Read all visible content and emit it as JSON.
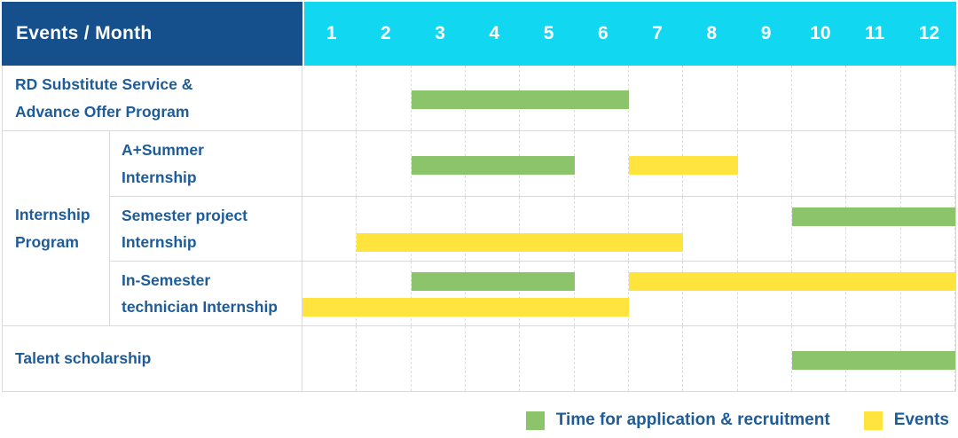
{
  "colors": {
    "header_blue": "#15508c",
    "header_cyan": "#12d7f0",
    "text_blue": "#1e5c99",
    "bar_green": "#8bc46a",
    "bar_yellow": "#ffe43d",
    "grid_line": "#dcdcdc",
    "row_border": "#d9d9d9"
  },
  "header": {
    "title": "Events / Month",
    "months": [
      "1",
      "2",
      "3",
      "4",
      "5",
      "6",
      "7",
      "8",
      "9",
      "10",
      "11",
      "12"
    ]
  },
  "group": {
    "label": "Internship\nProgram"
  },
  "ui": {
    "rows": [
      {
        "label": "RD Substitute Service &\nAdvance Offer Program",
        "bars": [
          {
            "color": "green",
            "start": 3,
            "end": 6,
            "lane": "center"
          }
        ]
      },
      {
        "label": "A+Summer\nInternship",
        "bars": [
          {
            "color": "green",
            "start": 3,
            "end": 5,
            "lane": "center"
          },
          {
            "color": "yellow",
            "start": 7,
            "end": 8,
            "lane": "center"
          }
        ]
      },
      {
        "label": "Semester project\nInternship",
        "bars": [
          {
            "color": "green",
            "start": 10,
            "end": 12,
            "lane": "top"
          },
          {
            "color": "yellow",
            "start": 2,
            "end": 7,
            "lane": "bottom"
          }
        ]
      },
      {
        "label": "In-Semester\ntechnician Internship",
        "bars": [
          {
            "color": "green",
            "start": 3,
            "end": 5,
            "lane": "top"
          },
          {
            "color": "yellow",
            "start": 7,
            "end": 12,
            "lane": "top"
          },
          {
            "color": "yellow",
            "start": 1,
            "end": 6,
            "lane": "bottom"
          }
        ]
      },
      {
        "label": "Talent scholarship",
        "bars": [
          {
            "color": "green",
            "start": 10,
            "end": 12,
            "lane": "center"
          }
        ]
      }
    ]
  },
  "legend": [
    {
      "label": "Time for application & recruitment",
      "color": "#8bc46a"
    },
    {
      "label": "Events",
      "color": "#ffe43d"
    }
  ],
  "chart_data": {
    "type": "bar",
    "subtype": "gantt",
    "title": "Events / Month",
    "x_axis": {
      "label": "Month",
      "ticks": [
        1,
        2,
        3,
        4,
        5,
        6,
        7,
        8,
        9,
        10,
        11,
        12
      ],
      "range": [
        1,
        12
      ]
    },
    "legend_entries": [
      "Time for application & recruitment",
      "Events"
    ],
    "legend_position": "bottom-right",
    "grid": true,
    "series": [
      {
        "category": "RD Substitute Service & Advance Offer Program",
        "group": null,
        "intervals": [
          {
            "kind": "Time for application & recruitment",
            "start_month": 3,
            "end_month": 6
          }
        ]
      },
      {
        "category": "A+Summer Internship",
        "group": "Internship Program",
        "intervals": [
          {
            "kind": "Time for application & recruitment",
            "start_month": 3,
            "end_month": 5
          },
          {
            "kind": "Events",
            "start_month": 7,
            "end_month": 8
          }
        ]
      },
      {
        "category": "Semester project Internship",
        "group": "Internship Program",
        "intervals": [
          {
            "kind": "Time for application & recruitment",
            "start_month": 10,
            "end_month": 12
          },
          {
            "kind": "Events",
            "start_month": 2,
            "end_month": 7
          }
        ]
      },
      {
        "category": "In-Semester technician Internship",
        "group": "Internship Program",
        "intervals": [
          {
            "kind": "Time for application & recruitment",
            "start_month": 3,
            "end_month": 5
          },
          {
            "kind": "Events",
            "start_month": 7,
            "end_month": 12
          },
          {
            "kind": "Events",
            "start_month": 1,
            "end_month": 6
          }
        ]
      },
      {
        "category": "Talent scholarship",
        "group": null,
        "intervals": [
          {
            "kind": "Time for application & recruitment",
            "start_month": 10,
            "end_month": 12
          }
        ]
      }
    ]
  }
}
